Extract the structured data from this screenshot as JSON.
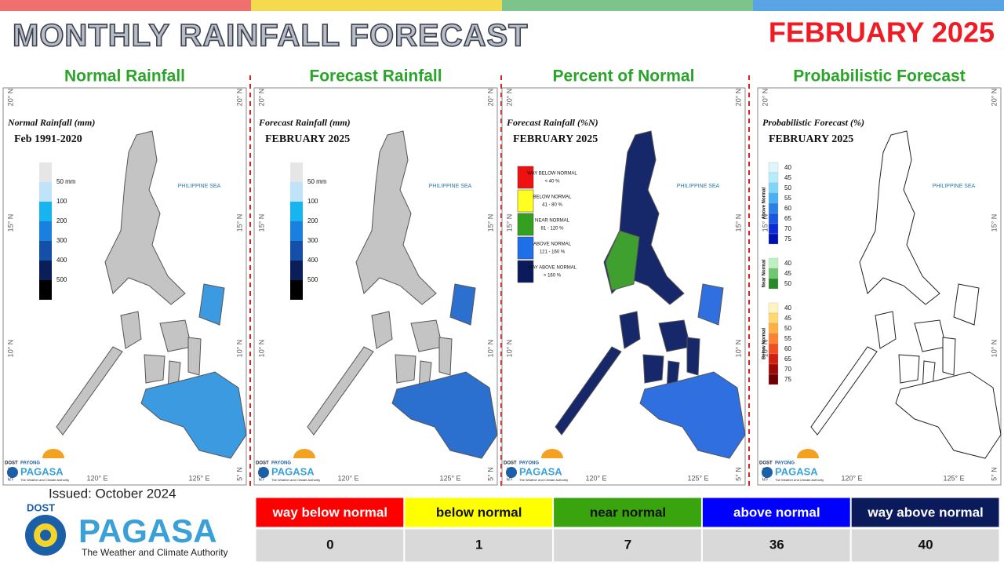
{
  "header": {
    "title": "MONTHLY RAINFALL FORECAST",
    "period": "FEBRUARY 2025"
  },
  "panels": [
    {
      "title": "Normal Rainfall",
      "map_title": "Normal Rainfall (mm)",
      "map_subtitle": "Feb 1991-2020",
      "legend": [
        "50 mm",
        "100",
        "200",
        "300",
        "400",
        "500"
      ]
    },
    {
      "title": "Forecast Rainfall",
      "map_title": "Forecast Rainfall (mm)",
      "map_subtitle": "FEBRUARY 2025",
      "legend": [
        "50 mm",
        "100",
        "200",
        "300",
        "400",
        "500"
      ]
    },
    {
      "title": "Percent of Normal",
      "map_title": "Forecast Rainfall (%N)",
      "map_subtitle": "FEBRUARY 2025",
      "legend": [
        {
          "label": "WAY BELOW NORMAL",
          "range": "< 40 %"
        },
        {
          "label": "BELOW NORMAL",
          "range": "41 - 80 %"
        },
        {
          "label": "NEAR NORMAL",
          "range": "81 - 120 %"
        },
        {
          "label": "ABOVE NORMAL",
          "range": "121 - 160 %"
        },
        {
          "label": "WAY ABOVE NORMAL",
          "range": "> 160 %"
        }
      ]
    },
    {
      "title": "Probabilistic Forecast",
      "map_title": "Probabilistic Forecast (%)",
      "map_subtitle": "FEBRUARY 2025",
      "legend_groups": [
        {
          "name": "Above Normal",
          "levels": [
            40,
            45,
            50,
            55,
            60,
            65,
            70,
            75
          ]
        },
        {
          "name": "Near Normal",
          "levels": [
            40,
            45,
            50
          ]
        },
        {
          "name": "Below Normal",
          "levels": [
            40,
            45,
            50,
            55,
            60,
            65,
            70,
            75
          ]
        }
      ]
    }
  ],
  "map_labels": {
    "sea": "PHILIPPINE SEA",
    "lat": [
      "20° N",
      "15° N",
      "10° N",
      "5° N"
    ],
    "lon": [
      "120° E",
      "125° E"
    ]
  },
  "panel_logo": {
    "dost": "DOST",
    "payong": "PAYONG",
    "agency": "PAGASA",
    "tagline": "The Weather and Climate Authority"
  },
  "issued": "Issued: October 2024",
  "logo": {
    "dost": "DOST",
    "agency": "PAGASA",
    "tagline": "The Weather and Climate Authority"
  },
  "table": {
    "headers": [
      "way below normal",
      "below normal",
      "near normal",
      "above normal",
      "way above normal"
    ],
    "counts": [
      0,
      1,
      7,
      36,
      40
    ]
  }
}
